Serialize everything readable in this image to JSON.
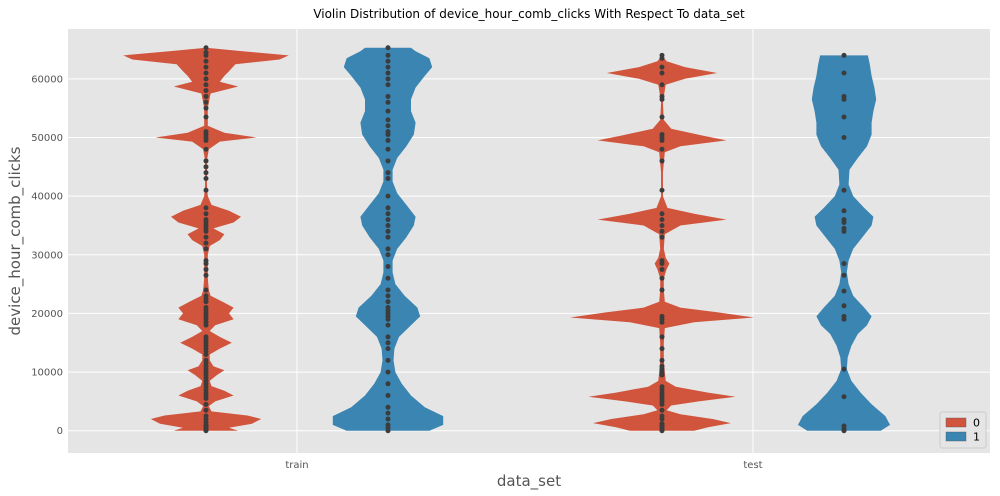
{
  "chart_data": {
    "type": "violin",
    "title": "Violin Distribution of device_hour_comb_clicks With Respect To data_set",
    "xlabel": "data_set",
    "ylabel": "device_hour_comb_clicks",
    "categories": [
      "train",
      "test"
    ],
    "ylim": [
      -3800,
      68500
    ],
    "yticks": [
      0,
      10000,
      20000,
      30000,
      40000,
      50000,
      60000
    ],
    "grid": true,
    "legend": {
      "position": "bottom-right",
      "entries": [
        "0",
        "1"
      ]
    },
    "colors": {
      "0": "#d1553d",
      "1": "#3b85b3",
      "points": "#3c3c3c",
      "plot_bg": "#e5e5e5",
      "grid": "#ffffff"
    },
    "series": [
      {
        "name": "0",
        "violins": [
          {
            "category": "train",
            "range": [
              0,
              65300
            ],
            "density": [
              [
                0,
                0.35
              ],
              [
                500,
                0.25
              ],
              [
                1200,
                0.5
              ],
              [
                2000,
                0.6
              ],
              [
                2600,
                0.45
              ],
              [
                3300,
                0.06
              ],
              [
                4200,
                0.03
              ],
              [
                5000,
                0.1
              ],
              [
                6000,
                0.3
              ],
              [
                6800,
                0.2
              ],
              [
                7600,
                0.06
              ],
              [
                8500,
                0.04
              ],
              [
                9500,
                0.12
              ],
              [
                10300,
                0.2
              ],
              [
                11000,
                0.08
              ],
              [
                12000,
                0.04
              ],
              [
                13000,
                0.04
              ],
              [
                14000,
                0.15
              ],
              [
                15000,
                0.28
              ],
              [
                16000,
                0.15
              ],
              [
                17000,
                0.04
              ],
              [
                18000,
                0.1
              ],
              [
                19000,
                0.3
              ],
              [
                20000,
                0.25
              ],
              [
                21000,
                0.3
              ],
              [
                22000,
                0.18
              ],
              [
                23000,
                0.05
              ],
              [
                24000,
                0.03
              ],
              [
                26000,
                0.02
              ],
              [
                28000,
                0.02
              ],
              [
                30000,
                0.02
              ],
              [
                31500,
                0.04
              ],
              [
                32500,
                0.15
              ],
              [
                33500,
                0.2
              ],
              [
                34500,
                0.08
              ],
              [
                35500,
                0.3
              ],
              [
                36500,
                0.38
              ],
              [
                37500,
                0.25
              ],
              [
                38500,
                0.06
              ],
              [
                40000,
                0.02
              ],
              [
                42000,
                0.01
              ],
              [
                46000,
                0.01
              ],
              [
                48000,
                0.03
              ],
              [
                49300,
                0.15
              ],
              [
                50000,
                0.55
              ],
              [
                50800,
                0.2
              ],
              [
                52000,
                0.02
              ],
              [
                55000,
                0.02
              ],
              [
                57500,
                0.05
              ],
              [
                58700,
                0.35
              ],
              [
                59500,
                0.15
              ],
              [
                60500,
                0.2
              ],
              [
                61300,
                0.25
              ],
              [
                62500,
                0.32
              ],
              [
                63300,
                0.8
              ],
              [
                64000,
                0.9
              ],
              [
                64700,
                0.4
              ],
              [
                65300,
                0
              ]
            ],
            "points": [
              0,
              200,
              400,
              600,
              800,
              1000,
              1500,
              2000,
              2500,
              3500,
              4500,
              5500,
              6000,
              6500,
              7000,
              7500,
              8000,
              8500,
              9000,
              9500,
              10000,
              10500,
              11000,
              11500,
              12000,
              13000,
              13500,
              14000,
              14500,
              15000,
              15500,
              16000,
              18000,
              18500,
              19000,
              19500,
              20000,
              20500,
              21000,
              22000,
              22500,
              23000,
              24000,
              26500,
              27500,
              28500,
              29000,
              31000,
              32000,
              33000,
              34000,
              34500,
              35000,
              35500,
              36000,
              37000,
              38000,
              41000,
              43000,
              44000,
              45000,
              46000,
              48000,
              49500,
              50000,
              50500,
              51000,
              53500,
              55000,
              56000,
              57000,
              58000,
              59000,
              60000,
              61000,
              62000,
              63000,
              64000,
              64500,
              65300
            ]
          },
          {
            "category": "test",
            "range": [
              0,
              64000
            ],
            "density": [
              [
                0,
                0.35
              ],
              [
                600,
                0.5
              ],
              [
                1300,
                0.75
              ],
              [
                2000,
                0.55
              ],
              [
                2800,
                0.2
              ],
              [
                3500,
                0.05
              ],
              [
                4300,
                0.1
              ],
              [
                5000,
                0.4
              ],
              [
                5800,
                0.8
              ],
              [
                6500,
                0.5
              ],
              [
                7500,
                0.15
              ],
              [
                8500,
                0.04
              ],
              [
                10000,
                0.03
              ],
              [
                12000,
                0.02
              ],
              [
                15000,
                0.02
              ],
              [
                17500,
                0.03
              ],
              [
                18500,
                0.35
              ],
              [
                19300,
                1.0
              ],
              [
                20200,
                0.6
              ],
              [
                21000,
                0.2
              ],
              [
                22000,
                0.03
              ],
              [
                24000,
                0.02
              ],
              [
                26000,
                0.02
              ],
              [
                27500,
                0.05
              ],
              [
                28500,
                0.08
              ],
              [
                29500,
                0.04
              ],
              [
                31000,
                0.02
              ],
              [
                33500,
                0.03
              ],
              [
                35000,
                0.2
              ],
              [
                36000,
                0.7
              ],
              [
                37000,
                0.35
              ],
              [
                38000,
                0.06
              ],
              [
                40000,
                0.01
              ],
              [
                44000,
                0.01
              ],
              [
                47500,
                0.03
              ],
              [
                48500,
                0.2
              ],
              [
                49500,
                0.7
              ],
              [
                50300,
                0.45
              ],
              [
                51500,
                0.1
              ],
              [
                53000,
                0.02
              ],
              [
                56000,
                0.01
              ],
              [
                59000,
                0.04
              ],
              [
                60000,
                0.25
              ],
              [
                61000,
                0.6
              ],
              [
                62000,
                0.25
              ],
              [
                63000,
                0.05
              ],
              [
                64000,
                0
              ]
            ],
            "points": [
              0,
              300,
              600,
              900,
              1200,
              2000,
              2500,
              3500,
              4500,
              5000,
              5500,
              6000,
              6500,
              7000,
              7500,
              9500,
              10000,
              10500,
              11000,
              12000,
              14000,
              16000,
              18500,
              19000,
              19500,
              24000,
              26000,
              27500,
              28500,
              29000,
              33000,
              34000,
              35000,
              36000,
              37000,
              41000,
              46000,
              48000,
              49500,
              50000,
              50500,
              53500,
              56500,
              57000,
              59000,
              61000,
              62000,
              63500,
              64000
            ]
          }
        ]
      },
      {
        "name": "1",
        "violins": [
          {
            "category": "train",
            "range": [
              0,
              65300
            ],
            "density": [
              [
                0,
                0.45
              ],
              [
                1000,
                0.6
              ],
              [
                2500,
                0.6
              ],
              [
                4000,
                0.4
              ],
              [
                6000,
                0.25
              ],
              [
                8000,
                0.15
              ],
              [
                10000,
                0.08
              ],
              [
                12000,
                0.06
              ],
              [
                14000,
                0.07
              ],
              [
                16000,
                0.12
              ],
              [
                18000,
                0.25
              ],
              [
                19500,
                0.35
              ],
              [
                21000,
                0.32
              ],
              [
                23000,
                0.18
              ],
              [
                25000,
                0.08
              ],
              [
                27000,
                0.05
              ],
              [
                29000,
                0.05
              ],
              [
                31000,
                0.1
              ],
              [
                33000,
                0.2
              ],
              [
                35000,
                0.28
              ],
              [
                36500,
                0.3
              ],
              [
                38500,
                0.2
              ],
              [
                40500,
                0.1
              ],
              [
                42500,
                0.05
              ],
              [
                44500,
                0.05
              ],
              [
                46500,
                0.1
              ],
              [
                48500,
                0.2
              ],
              [
                50500,
                0.28
              ],
              [
                52500,
                0.3
              ],
              [
                54500,
                0.25
              ],
              [
                56500,
                0.25
              ],
              [
                58500,
                0.3
              ],
              [
                60500,
                0.4
              ],
              [
                62000,
                0.48
              ],
              [
                63500,
                0.45
              ],
              [
                64700,
                0.3
              ],
              [
                65300,
                0.25
              ]
            ],
            "points": [
              0,
              500,
              1000,
              2000,
              3000,
              4000,
              6000,
              8000,
              10000,
              12000,
              14000,
              15000,
              16000,
              18000,
              19000,
              19500,
              20000,
              20500,
              21000,
              22000,
              23000,
              24000,
              26000,
              28000,
              30000,
              31000,
              33000,
              34000,
              35000,
              36000,
              37000,
              38000,
              40000,
              43000,
              44000,
              46000,
              48000,
              49500,
              50500,
              51000,
              52000,
              53000,
              54500,
              56000,
              57000,
              59000,
              60000,
              61000,
              62000,
              63000,
              64000,
              65300
            ]
          },
          {
            "category": "test",
            "range": [
              0,
              64000
            ],
            "density": [
              [
                0,
                0.4
              ],
              [
                1000,
                0.5
              ],
              [
                2500,
                0.45
              ],
              [
                4500,
                0.3
              ],
              [
                6500,
                0.18
              ],
              [
                8500,
                0.08
              ],
              [
                10500,
                0.03
              ],
              [
                12500,
                0.04
              ],
              [
                14500,
                0.08
              ],
              [
                16500,
                0.15
              ],
              [
                18000,
                0.25
              ],
              [
                19500,
                0.3
              ],
              [
                21000,
                0.22
              ],
              [
                23000,
                0.1
              ],
              [
                25000,
                0.05
              ],
              [
                27000,
                0.03
              ],
              [
                29000,
                0.05
              ],
              [
                31000,
                0.1
              ],
              [
                33000,
                0.2
              ],
              [
                35000,
                0.3
              ],
              [
                36500,
                0.32
              ],
              [
                38000,
                0.22
              ],
              [
                40000,
                0.1
              ],
              [
                42000,
                0.05
              ],
              [
                44500,
                0.06
              ],
              [
                46500,
                0.15
              ],
              [
                48500,
                0.25
              ],
              [
                50500,
                0.3
              ],
              [
                52500,
                0.3
              ],
              [
                54500,
                0.32
              ],
              [
                56500,
                0.35
              ],
              [
                58500,
                0.33
              ],
              [
                60500,
                0.3
              ],
              [
                62500,
                0.28
              ],
              [
                64000,
                0.26
              ]
            ],
            "points": [
              0,
              300,
              800,
              5800,
              10500,
              19000,
              19500,
              21300,
              23800,
              26500,
              28500,
              34000,
              34500,
              35500,
              36000,
              37500,
              41000,
              50000,
              53500,
              56500,
              57000,
              61000,
              64000
            ]
          }
        ]
      }
    ]
  }
}
